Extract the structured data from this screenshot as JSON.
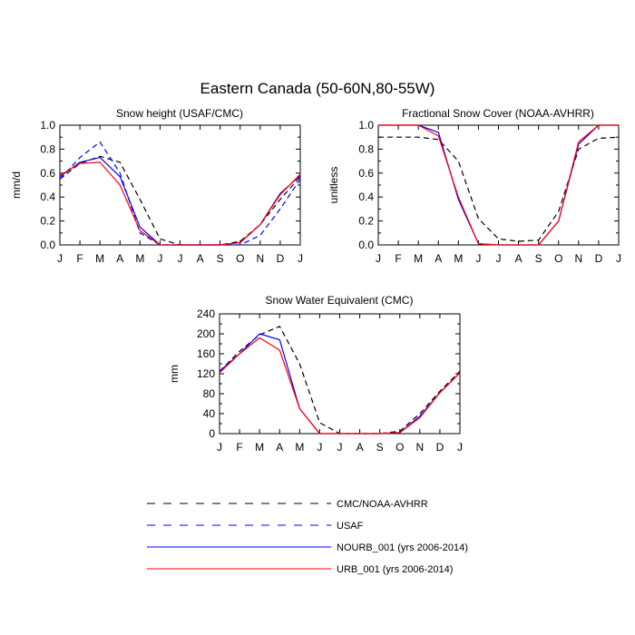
{
  "page": {
    "title": "Eastern Canada (50-60N,80-55W)"
  },
  "colors": {
    "obs": "#000000",
    "usaf": "#0000ff",
    "nourb": "#0000ff",
    "urb": "#ff0000"
  },
  "legend": [
    {
      "key": "obs",
      "label": "CMC/NOAA-AVHRR",
      "style": "dashed",
      "color": "#000000"
    },
    {
      "key": "usaf",
      "label": "USAF",
      "style": "dashed",
      "color": "#0000ff"
    },
    {
      "key": "nourb",
      "label": "NOURB_001 (yrs 2006-2014)",
      "style": "solid",
      "color": "#0000ff"
    },
    {
      "key": "urb",
      "label": "URB_001 (yrs 2006-2014)",
      "style": "solid",
      "color": "#ff0000"
    }
  ],
  "chart_data": [
    {
      "type": "line",
      "title": "Snow height (USAF/CMC)",
      "xlabel": "",
      "ylabel": "mm/d",
      "categories": [
        "J",
        "F",
        "M",
        "A",
        "M",
        "J",
        "J",
        "A",
        "S",
        "O",
        "N",
        "D",
        "J"
      ],
      "ylim": [
        0,
        1.0
      ],
      "yticks": [
        0.0,
        0.2,
        0.4,
        0.6,
        0.8,
        1.0
      ],
      "ytick_labels": [
        "0.0",
        "0.2",
        "0.4",
        "0.6",
        "0.8",
        "1.0"
      ],
      "series": [
        {
          "key": "obs",
          "style": "dashed",
          "values": [
            0.55,
            0.68,
            0.74,
            0.69,
            0.38,
            0.05,
            0.0,
            0.0,
            0.0,
            0.03,
            0.17,
            0.38,
            0.57
          ]
        },
        {
          "key": "usaf",
          "style": "dashed",
          "values": [
            0.55,
            0.73,
            0.86,
            0.6,
            0.1,
            0.0,
            0.0,
            0.0,
            0.0,
            0.0,
            0.08,
            0.3,
            0.55
          ]
        },
        {
          "key": "nourb",
          "style": "solid",
          "values": [
            0.57,
            0.69,
            0.73,
            0.57,
            0.15,
            0.0,
            0.0,
            0.0,
            0.0,
            0.02,
            0.17,
            0.43,
            0.58
          ]
        },
        {
          "key": "urb",
          "style": "solid",
          "values": [
            0.58,
            0.68,
            0.69,
            0.5,
            0.12,
            0.0,
            0.0,
            0.0,
            0.0,
            0.02,
            0.17,
            0.42,
            0.59
          ]
        }
      ]
    },
    {
      "type": "line",
      "title": "Fractional Snow Cover (NOAA-AVHRR)",
      "xlabel": "",
      "ylabel": "unitless",
      "categories": [
        "J",
        "F",
        "M",
        "A",
        "M",
        "J",
        "J",
        "A",
        "S",
        "O",
        "N",
        "D",
        "J"
      ],
      "ylim": [
        0,
        1.0
      ],
      "yticks": [
        0.0,
        0.2,
        0.4,
        0.6,
        0.8,
        1.0
      ],
      "ytick_labels": [
        "0.0",
        "0.2",
        "0.4",
        "0.6",
        "0.8",
        "1.0"
      ],
      "series": [
        {
          "key": "obs",
          "style": "dashed",
          "values": [
            0.9,
            0.9,
            0.9,
            0.88,
            0.7,
            0.22,
            0.05,
            0.03,
            0.04,
            0.28,
            0.8,
            0.89,
            0.9
          ]
        },
        {
          "key": "nourb",
          "style": "solid",
          "values": [
            1.0,
            1.0,
            1.0,
            0.94,
            0.38,
            0.01,
            0.0,
            0.0,
            0.0,
            0.2,
            0.84,
            1.0,
            1.0
          ]
        },
        {
          "key": "urb",
          "style": "solid",
          "values": [
            1.0,
            1.0,
            1.0,
            0.91,
            0.4,
            0.01,
            0.0,
            0.0,
            0.0,
            0.2,
            0.86,
            1.0,
            1.0
          ]
        }
      ]
    },
    {
      "type": "line",
      "title": "Snow Water Equivalent (CMC)",
      "xlabel": "",
      "ylabel": "mm",
      "categories": [
        "J",
        "F",
        "M",
        "A",
        "M",
        "J",
        "J",
        "A",
        "S",
        "O",
        "N",
        "D",
        "J"
      ],
      "ylim": [
        0,
        240
      ],
      "yticks": [
        0,
        40,
        80,
        120,
        160,
        200,
        240
      ],
      "ytick_labels": [
        "0",
        "40",
        "80",
        "120",
        "160",
        "200",
        "240"
      ],
      "series": [
        {
          "key": "obs",
          "style": "dashed",
          "values": [
            125,
            165,
            198,
            215,
            140,
            22,
            0,
            0,
            0,
            5,
            40,
            85,
            125
          ]
        },
        {
          "key": "nourb",
          "style": "solid",
          "values": [
            125,
            160,
            200,
            188,
            50,
            0,
            0,
            0,
            0,
            2,
            35,
            82,
            122
          ]
        },
        {
          "key": "urb",
          "style": "solid",
          "values": [
            122,
            160,
            192,
            167,
            50,
            0,
            0,
            0,
            0,
            2,
            32,
            82,
            122
          ]
        }
      ]
    }
  ]
}
